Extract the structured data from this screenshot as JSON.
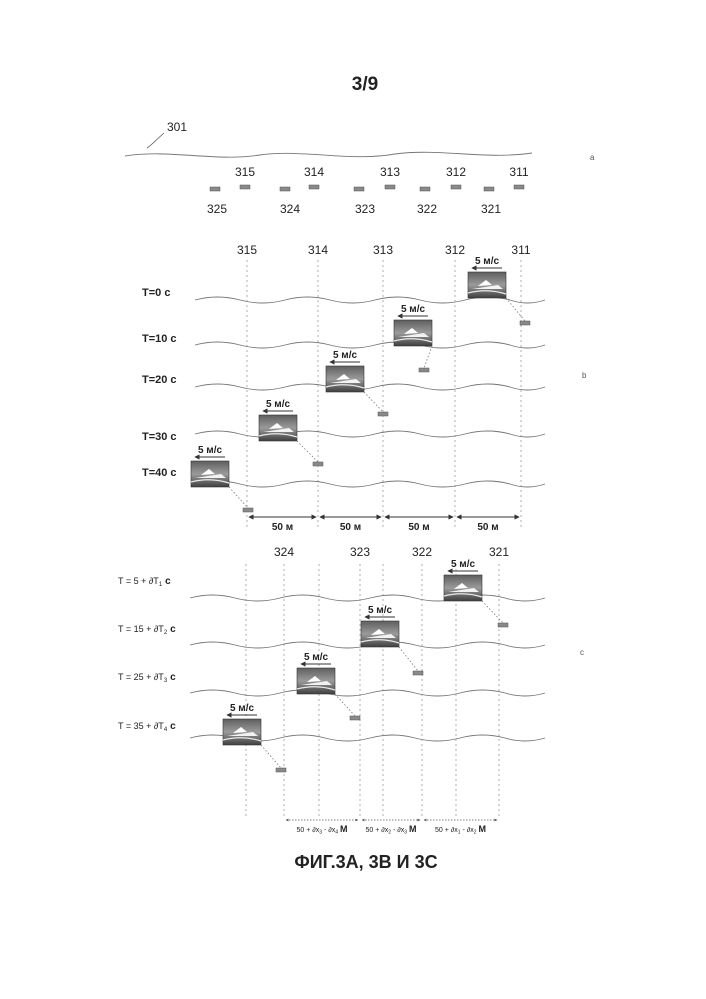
{
  "page": {
    "number": "3/9",
    "caption": "ФИГ.3А, 3В И 3С"
  },
  "panel_a": {
    "ref_label": "301",
    "side_label": "a",
    "top_sensors": [
      "315",
      "314",
      "313",
      "312",
      "311"
    ],
    "bottom_sensors": [
      "325",
      "324",
      "323",
      "322",
      "321"
    ]
  },
  "panel_b": {
    "side_label": "b",
    "columns": [
      "315",
      "314",
      "313",
      "312",
      "311"
    ],
    "times": [
      "T=0 с",
      "T=10 с",
      "T=20 с",
      "T=30 с",
      "T=40 с"
    ],
    "speed": "5 м/с",
    "distances": [
      "50 м",
      "50 м",
      "50 м",
      "50 м"
    ]
  },
  "panel_c": {
    "side_label": "c",
    "columns": [
      "324",
      "323",
      "322",
      "321"
    ],
    "times": [
      {
        "text": "T = 5 + ∂T",
        "sub": "1",
        "unit": "с"
      },
      {
        "text": "T = 15 + ∂T",
        "sub": "2",
        "unit": "с"
      },
      {
        "text": "T = 25 + ∂T",
        "sub": "3",
        "unit": "с"
      },
      {
        "text": "T = 35 + ∂T",
        "sub": "4",
        "unit": "с"
      }
    ],
    "speed": "5 м/с",
    "distances": [
      {
        "text": "50 + ∂x",
        "s1": "3",
        "mid": " - ∂x",
        "s2": "4",
        "unit": "М"
      },
      {
        "text": "50 + ∂x",
        "s1": "2",
        "mid": " - ∂x",
        "s2": "3",
        "unit": "М"
      },
      {
        "text": "50 + ∂x",
        "s1": "1",
        "mid": " - ∂x",
        "s2": "2",
        "unit": "М"
      }
    ]
  }
}
